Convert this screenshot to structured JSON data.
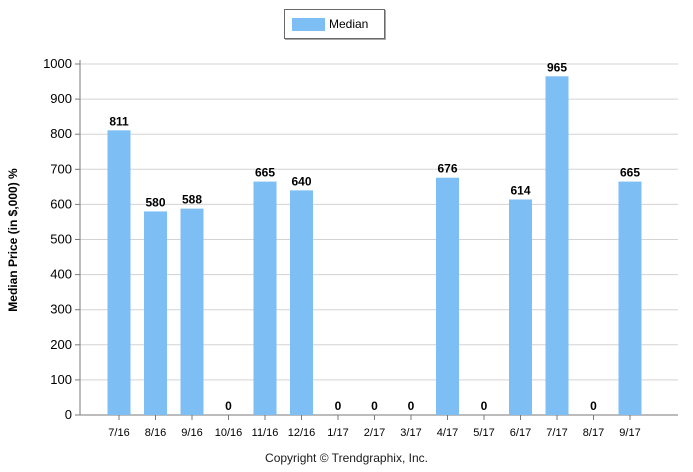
{
  "chart_data": {
    "type": "bar",
    "categories": [
      "7/16",
      "8/16",
      "9/16",
      "10/16",
      "11/16",
      "12/16",
      "1/17",
      "2/17",
      "3/17",
      "4/17",
      "5/17",
      "6/17",
      "7/17",
      "8/17",
      "9/17"
    ],
    "series": [
      {
        "name": "Median",
        "values": [
          811,
          580,
          588,
          0,
          665,
          640,
          0,
          0,
          0,
          676,
          0,
          614,
          965,
          0,
          665
        ]
      }
    ],
    "ylabel": "Median Price (in $,000) %",
    "ylim": [
      0,
      1000
    ],
    "yticks": [
      0,
      100,
      200,
      300,
      400,
      500,
      600,
      700,
      800,
      900,
      1000
    ],
    "grid": true,
    "legend_position": "top-center",
    "bar_color": "#7dbef4",
    "footer": "Copyright © Trendgraphix, Inc."
  }
}
